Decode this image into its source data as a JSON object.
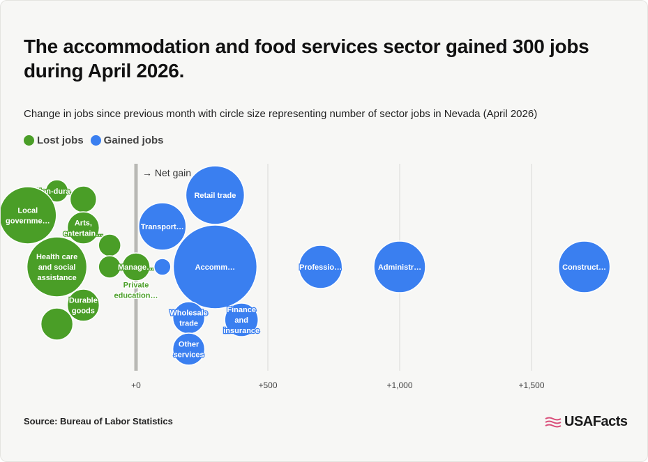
{
  "title": "The accommodation and food services sector gained 300 jobs during April 2026.",
  "subtitle": "Change in jobs since previous month with circle size representing number of sector jobs in Nevada (April 2026)",
  "legend": [
    {
      "label": "Lost jobs",
      "color": "#4a9e27"
    },
    {
      "label": "Gained jobs",
      "color": "#3a7ff0"
    }
  ],
  "source": "Source: Bureau of Labor Statistics",
  "logo_text": "USAFacts",
  "chart_data": {
    "type": "scatter",
    "title": "The accommodation and food services sector gained 300 jobs during April 2026.",
    "subtitle": "Change in jobs since previous month with circle size representing number of sector jobs in Nevada (April 2026)",
    "xlim": [
      -500,
      1900
    ],
    "x_ticks": [
      0,
      500,
      1000,
      1500
    ],
    "x_tick_labels": [
      "+0",
      "+500",
      "+1,000",
      "+1,500"
    ],
    "zero_annotation": "→ Net gain",
    "grid": true,
    "points": [
      {
        "label": "Non-dura…",
        "x": -300,
        "group": "lost"
      },
      {
        "label": "",
        "x": -200,
        "group": "lost"
      },
      {
        "label": "Local governme…",
        "x": -400,
        "group": "lost"
      },
      {
        "label": "Arts, entertain…",
        "x": -200,
        "group": "lost"
      },
      {
        "label": "",
        "x": -100,
        "group": "lost"
      },
      {
        "label": "Health care and social assistance",
        "x": -300,
        "group": "lost"
      },
      {
        "label": "",
        "x": -100,
        "group": "lost"
      },
      {
        "label": "Manage…",
        "x": 0,
        "group": "lost"
      },
      {
        "label": "Private education…",
        "x": 0,
        "group": "lost"
      },
      {
        "label": "Durable goods",
        "x": -200,
        "group": "lost"
      },
      {
        "label": "",
        "x": -300,
        "group": "lost"
      },
      {
        "label": "Retail trade",
        "x": 300,
        "group": "gained"
      },
      {
        "label": "Transport…",
        "x": 100,
        "group": "gained"
      },
      {
        "label": "",
        "x": 100,
        "group": "gained"
      },
      {
        "label": "Accomm…",
        "x": 300,
        "group": "gained"
      },
      {
        "label": "Professio…",
        "x": 700,
        "group": "gained"
      },
      {
        "label": "Administr…",
        "x": 1000,
        "group": "gained"
      },
      {
        "label": "Construct…",
        "x": 1700,
        "group": "gained"
      },
      {
        "label": "Wholesale trade",
        "x": 200,
        "group": "gained"
      },
      {
        "label": "Finance and insurance",
        "x": 400,
        "group": "gained"
      },
      {
        "label": "Other services",
        "x": 200,
        "group": "gained"
      }
    ]
  }
}
